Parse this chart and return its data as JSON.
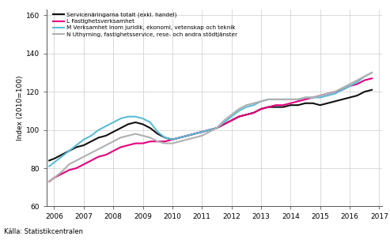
{
  "source": "Källa: Statistikcentralen",
  "ylabel": "Index (2010=100)",
  "xlim": [
    2005.75,
    2017.1
  ],
  "ylim": [
    60,
    163
  ],
  "yticks": [
    60,
    80,
    100,
    120,
    140,
    160
  ],
  "xticks": [
    2006,
    2007,
    2008,
    2009,
    2010,
    2011,
    2012,
    2013,
    2014,
    2015,
    2016,
    2017
  ],
  "legend": [
    "Servicenäringarna totalt (exkl. handel)",
    "L Fastighetsverksamhet",
    "M Verksamhet inom juridik, ekonomi, vetenskap och teknik",
    "N Uthyrning, fastighetsservice, rese- och andra stödtjänster"
  ],
  "colors": [
    "#111111",
    "#e6007e",
    "#5bbcd6",
    "#b0b0b0"
  ],
  "linewidths": [
    1.5,
    1.5,
    1.5,
    1.5
  ],
  "series": {
    "black": {
      "x": [
        2005.83,
        2006.0,
        2006.25,
        2006.5,
        2006.75,
        2007.0,
        2007.25,
        2007.5,
        2007.75,
        2008.0,
        2008.25,
        2008.5,
        2008.75,
        2009.0,
        2009.25,
        2009.5,
        2009.75,
        2010.0,
        2010.25,
        2010.5,
        2010.75,
        2011.0,
        2011.25,
        2011.5,
        2011.75,
        2012.0,
        2012.25,
        2012.5,
        2012.75,
        2013.0,
        2013.25,
        2013.5,
        2013.75,
        2014.0,
        2014.25,
        2014.5,
        2014.75,
        2015.0,
        2015.25,
        2015.5,
        2015.75,
        2016.0,
        2016.25,
        2016.5,
        2016.75
      ],
      "y": [
        84,
        85,
        87,
        89,
        91,
        92,
        94,
        96,
        97,
        99,
        101,
        103,
        104,
        103,
        101,
        98,
        96,
        95,
        96,
        97,
        98,
        99,
        100,
        101,
        103,
        105,
        107,
        108,
        109,
        111,
        112,
        112,
        112,
        113,
        113,
        114,
        114,
        113,
        114,
        115,
        116,
        117,
        118,
        120,
        121
      ]
    },
    "magenta": {
      "x": [
        2005.83,
        2006.0,
        2006.25,
        2006.5,
        2006.75,
        2007.0,
        2007.25,
        2007.5,
        2007.75,
        2008.0,
        2008.25,
        2008.5,
        2008.75,
        2009.0,
        2009.25,
        2009.5,
        2009.75,
        2010.0,
        2010.25,
        2010.5,
        2010.75,
        2011.0,
        2011.25,
        2011.5,
        2011.75,
        2012.0,
        2012.25,
        2012.5,
        2012.75,
        2013.0,
        2013.25,
        2013.5,
        2013.75,
        2014.0,
        2014.25,
        2014.5,
        2014.75,
        2015.0,
        2015.25,
        2015.5,
        2015.75,
        2016.0,
        2016.25,
        2016.5,
        2016.75
      ],
      "y": [
        73,
        75,
        77,
        79,
        80,
        82,
        84,
        86,
        87,
        89,
        91,
        92,
        93,
        93,
        94,
        94,
        94,
        95,
        96,
        97,
        98,
        99,
        100,
        101,
        103,
        105,
        107,
        108,
        109,
        111,
        112,
        113,
        113,
        114,
        115,
        116,
        117,
        118,
        119,
        120,
        121,
        123,
        124,
        126,
        127
      ]
    },
    "blue": {
      "x": [
        2005.83,
        2006.0,
        2006.25,
        2006.5,
        2006.75,
        2007.0,
        2007.25,
        2007.5,
        2007.75,
        2008.0,
        2008.25,
        2008.5,
        2008.75,
        2009.0,
        2009.25,
        2009.5,
        2009.75,
        2010.0,
        2010.25,
        2010.5,
        2010.75,
        2011.0,
        2011.25,
        2011.5,
        2011.75,
        2012.0,
        2012.25,
        2012.5,
        2012.75,
        2013.0,
        2013.25,
        2013.5,
        2013.75,
        2014.0,
        2014.25,
        2014.5,
        2014.75,
        2015.0,
        2015.25,
        2015.5,
        2015.75,
        2016.0,
        2016.25,
        2016.5,
        2016.75
      ],
      "y": [
        81,
        83,
        86,
        89,
        92,
        95,
        97,
        100,
        102,
        104,
        106,
        107,
        107,
        106,
        104,
        99,
        96,
        95,
        96,
        97,
        98,
        99,
        100,
        101,
        104,
        107,
        110,
        112,
        113,
        115,
        116,
        116,
        116,
        116,
        116,
        117,
        117,
        117,
        118,
        119,
        121,
        123,
        125,
        128,
        130
      ]
    },
    "gray": {
      "x": [
        2005.83,
        2006.0,
        2006.25,
        2006.5,
        2006.75,
        2007.0,
        2007.25,
        2007.5,
        2007.75,
        2008.0,
        2008.25,
        2008.5,
        2008.75,
        2009.0,
        2009.25,
        2009.5,
        2009.75,
        2010.0,
        2010.25,
        2010.5,
        2010.75,
        2011.0,
        2011.25,
        2011.5,
        2011.75,
        2012.0,
        2012.25,
        2012.5,
        2012.75,
        2013.0,
        2013.25,
        2013.5,
        2013.75,
        2014.0,
        2014.25,
        2014.5,
        2014.75,
        2015.0,
        2015.25,
        2015.5,
        2015.75,
        2016.0,
        2016.25,
        2016.5,
        2016.75
      ],
      "y": [
        73,
        75,
        78,
        82,
        84,
        86,
        88,
        90,
        92,
        94,
        96,
        97,
        98,
        97,
        96,
        94,
        93,
        93,
        94,
        95,
        96,
        97,
        99,
        101,
        105,
        108,
        111,
        113,
        114,
        115,
        116,
        116,
        116,
        116,
        116,
        117,
        117,
        118,
        119,
        120,
        122,
        124,
        126,
        128,
        130
      ]
    }
  }
}
